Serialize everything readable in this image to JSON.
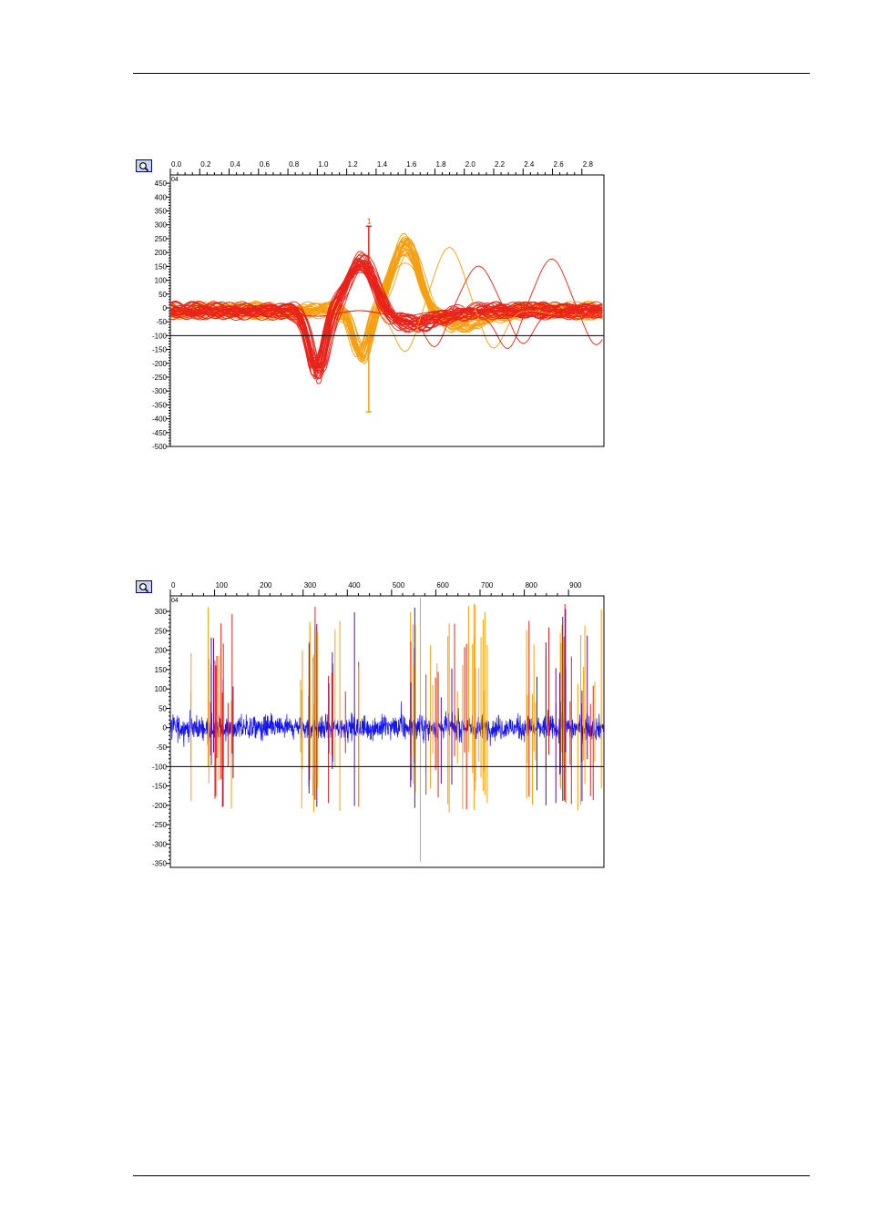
{
  "colors": {
    "unit1": "#e8231a",
    "unit2": "#f5a010",
    "purple": "#5a1090",
    "noise": "#1414ee",
    "threshold": "#000000",
    "zoom": "#000080"
  },
  "icons": {
    "zoom": "magnifier-icon"
  },
  "chart_data": [
    {
      "type": "line",
      "title": "",
      "xlabel": "",
      "ylabel": "",
      "x_ticks": [
        "0.0",
        "0.2",
        "0.4",
        "0.6",
        "0.8",
        "1.0",
        "1.2",
        "1.4",
        "1.6",
        "1.8",
        "2.0",
        "2.2",
        "2.4",
        "2.6",
        "2.8"
      ],
      "x_range": [
        0.0,
        2.95
      ],
      "y_ticks": [
        "450",
        "400",
        "350",
        "300",
        "250",
        "200",
        "150",
        "100",
        "50",
        "0",
        "-50",
        "-100",
        "-150",
        "-200",
        "-250",
        "-300",
        "-350",
        "-400",
        "-450",
        "-500"
      ],
      "y_range": [
        -500,
        480
      ],
      "corner_label": "04",
      "threshold": -100,
      "grid": false,
      "series": [
        {
          "name": "1",
          "color": "#e8231a",
          "trough": [
            1.0,
            -215
          ],
          "peak": [
            1.3,
            180
          ]
        },
        {
          "name": "",
          "color": "#f5a010",
          "trough": [
            1.3,
            -160
          ],
          "peak": [
            1.6,
            245
          ]
        }
      ],
      "marker": {
        "label": "1",
        "x": 1.35,
        "y_high": 295,
        "y_low": -375
      }
    },
    {
      "type": "line",
      "title": "",
      "xlabel": "",
      "ylabel": "",
      "x_ticks": [
        "0",
        "100",
        "200",
        "300",
        "400",
        "500",
        "600",
        "700",
        "800",
        "900"
      ],
      "x_range": [
        0,
        980
      ],
      "y_ticks": [
        "300",
        "250",
        "200",
        "150",
        "100",
        "50",
        "0",
        "-50",
        "-100",
        "-150",
        "-200",
        "-250",
        "-300",
        "-350"
      ],
      "y_range": [
        -360,
        340
      ],
      "corner_label": "04",
      "threshold": -100,
      "grid": false,
      "noise_amplitude": 45,
      "bursts": [
        [
          45,
          145
        ],
        [
          290,
          430
        ],
        [
          540,
          720
        ],
        [
          805,
          980
        ]
      ],
      "lone_spike": {
        "x": 565,
        "y_high": 335,
        "y_low": -345
      }
    }
  ]
}
